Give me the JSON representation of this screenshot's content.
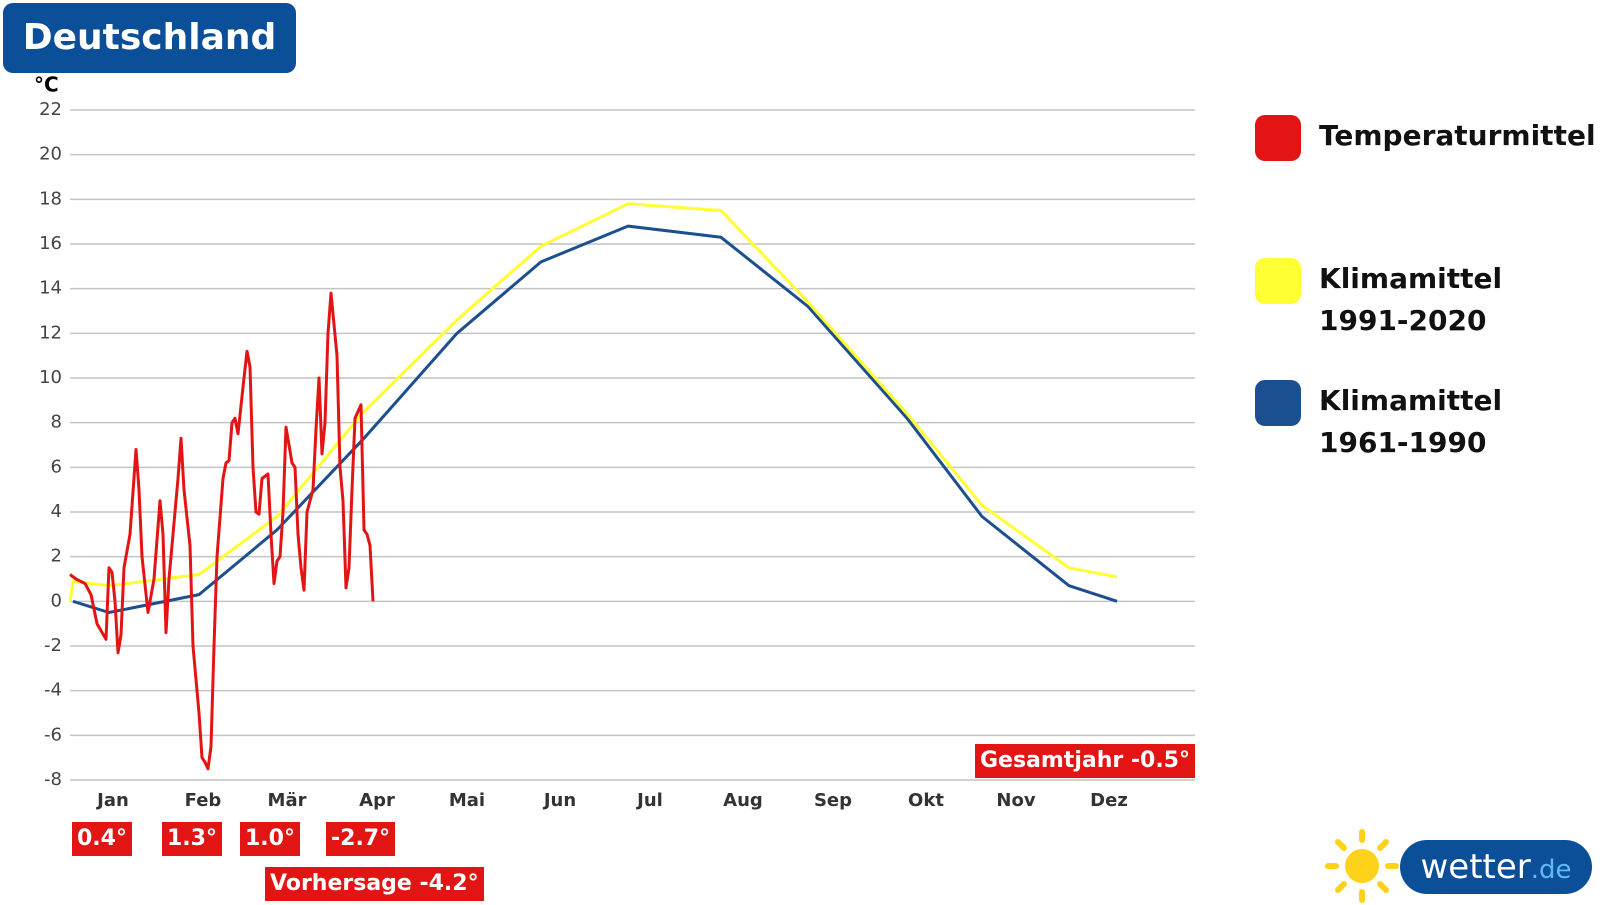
{
  "chart_data": {
    "type": "line",
    "title": "Deutschland",
    "y_label": "°C",
    "xlim": [
      0,
      375
    ],
    "xticks": [
      {
        "value": 7,
        "label": "Jan"
      },
      {
        "value": 37,
        "label": "Feb"
      },
      {
        "value": 65,
        "label": "Mär"
      },
      {
        "value": 95,
        "label": "Apr"
      },
      {
        "value": 125,
        "label": "Mai"
      },
      {
        "value": 156,
        "label": "Jun"
      },
      {
        "value": 186,
        "label": "Jul"
      },
      {
        "value": 217,
        "label": "Aug"
      },
      {
        "value": 247,
        "label": "Sep"
      },
      {
        "value": 278,
        "label": "Okt"
      },
      {
        "value": 308,
        "label": "Nov"
      },
      {
        "value": 339,
        "label": "Dez"
      }
    ],
    "ylim": [
      -8,
      22
    ],
    "yticks": [
      -8,
      -6,
      -4,
      -2,
      0,
      2,
      4,
      6,
      8,
      10,
      12,
      14,
      16,
      18,
      20,
      22
    ],
    "grid": true,
    "series": [
      {
        "name": "Temperaturmittel",
        "color": "#e31414",
        "x": [
          0,
          2,
          5,
          7,
          9,
          12,
          13,
          14,
          15,
          16,
          17,
          18,
          20,
          22,
          23,
          24,
          26,
          28,
          30,
          31,
          32,
          33,
          36,
          37,
          38,
          40,
          41,
          43,
          44,
          45,
          46,
          47,
          48,
          49,
          51,
          52,
          53,
          54,
          55,
          56,
          58,
          59,
          60,
          61,
          62,
          63,
          64,
          66,
          67,
          68,
          69,
          70,
          71,
          72,
          74,
          75,
          76,
          77,
          78,
          79,
          81,
          82,
          83,
          84,
          85,
          86,
          87,
          89,
          90,
          91,
          92,
          93,
          94,
          95,
          97,
          98,
          99,
          100,
          101
        ],
        "values": [
          1.2,
          1.0,
          0.8,
          0.3,
          -1.0,
          -1.7,
          1.5,
          1.3,
          0,
          -2.3,
          -1.5,
          1.5,
          3,
          6.8,
          5,
          2,
          -0.5,
          1,
          4.5,
          3,
          -1.4,
          1,
          5.5,
          7.3,
          5,
          2.5,
          -2,
          -5,
          -7,
          -7.2,
          -7.5,
          -6.5,
          -2,
          2,
          5.5,
          6.2,
          6.3,
          8,
          8.2,
          7.5,
          10,
          11.2,
          10.5,
          6,
          4,
          3.9,
          5.5,
          5.7,
          3,
          0.8,
          1.8,
          2,
          4,
          7.8,
          6.2,
          6,
          3,
          1.5,
          0.5,
          4,
          5,
          7.7,
          10,
          6.6,
          8,
          12,
          13.8,
          11,
          6,
          4.5,
          0.6,
          1.5,
          5,
          8.2,
          8.8,
          3.2,
          3,
          2.5,
          0
        ]
      },
      {
        "name": "Klimamittel 1991-2020",
        "color": "#ffff33",
        "x": [
          0,
          1,
          13,
          43,
          69,
          98,
          129,
          157,
          186,
          217,
          246,
          279,
          304,
          333,
          349
        ],
        "values": [
          0,
          0.9,
          0.7,
          1.2,
          3.8,
          8.5,
          12.6,
          15.9,
          17.8,
          17.5,
          13.4,
          8.4,
          4.3,
          1.5,
          1.1
        ]
      },
      {
        "name": "Klimamittel 1961-1990",
        "color": "#1c4f8f",
        "x": [
          1,
          13,
          43,
          69,
          98,
          129,
          157,
          186,
          217,
          246,
          279,
          304,
          333,
          349
        ],
        "values": [
          0,
          -0.5,
          0.3,
          3.2,
          7.3,
          12,
          15.2,
          16.8,
          16.3,
          13.2,
          8.2,
          3.8,
          0.7,
          0.0
        ]
      }
    ],
    "month_labels": [
      "0.4°",
      "1.3°",
      "1.0°",
      "-2.7°"
    ],
    "forecast": "Vorhersage -4.2°",
    "annual": "Gesamtjahr -0.5°",
    "logo": {
      "name": "wetter",
      "tld": ".de"
    }
  }
}
